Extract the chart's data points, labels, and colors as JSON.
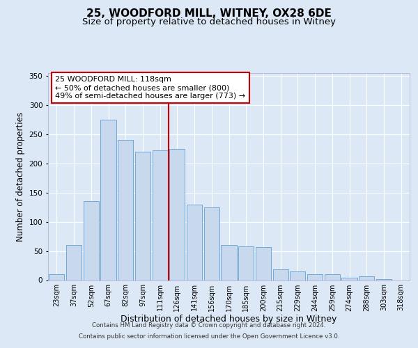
{
  "title": "25, WOODFORD MILL, WITNEY, OX28 6DE",
  "subtitle": "Size of property relative to detached houses in Witney",
  "xlabel": "Distribution of detached houses by size in Witney",
  "ylabel": "Number of detached properties",
  "bar_labels": [
    "23sqm",
    "37sqm",
    "52sqm",
    "67sqm",
    "82sqm",
    "97sqm",
    "111sqm",
    "126sqm",
    "141sqm",
    "156sqm",
    "170sqm",
    "185sqm",
    "200sqm",
    "215sqm",
    "229sqm",
    "244sqm",
    "259sqm",
    "274sqm",
    "288sqm",
    "303sqm",
    "318sqm"
  ],
  "bar_values": [
    10,
    60,
    135,
    275,
    240,
    220,
    222,
    225,
    130,
    125,
    60,
    58,
    57,
    18,
    15,
    10,
    10,
    4,
    6,
    2,
    0
  ],
  "bar_color": "#c8d9ee",
  "bar_edge_color": "#6ea8d8",
  "vline_x_index": 6,
  "vline_color": "#cc0000",
  "annotation_title": "25 WOODFORD MILL: 118sqm",
  "annotation_line1": "← 50% of detached houses are smaller (800)",
  "annotation_line2": "49% of semi-detached houses are larger (773) →",
  "annotation_box_color": "#ffffff",
  "annotation_box_edge": "#cc0000",
  "ylim": [
    0,
    355
  ],
  "yticks": [
    0,
    50,
    100,
    150,
    200,
    250,
    300,
    350
  ],
  "bg_color": "#dce8f5",
  "plot_bg_color": "#dce8f5",
  "footer1": "Contains HM Land Registry data © Crown copyright and database right 2024.",
  "footer2": "Contains public sector information licensed under the Open Government Licence v3.0.",
  "title_fontsize": 11,
  "subtitle_fontsize": 9.5,
  "xlabel_fontsize": 9,
  "ylabel_fontsize": 8.5,
  "tick_fontsize": 7,
  "annot_fontsize": 8
}
